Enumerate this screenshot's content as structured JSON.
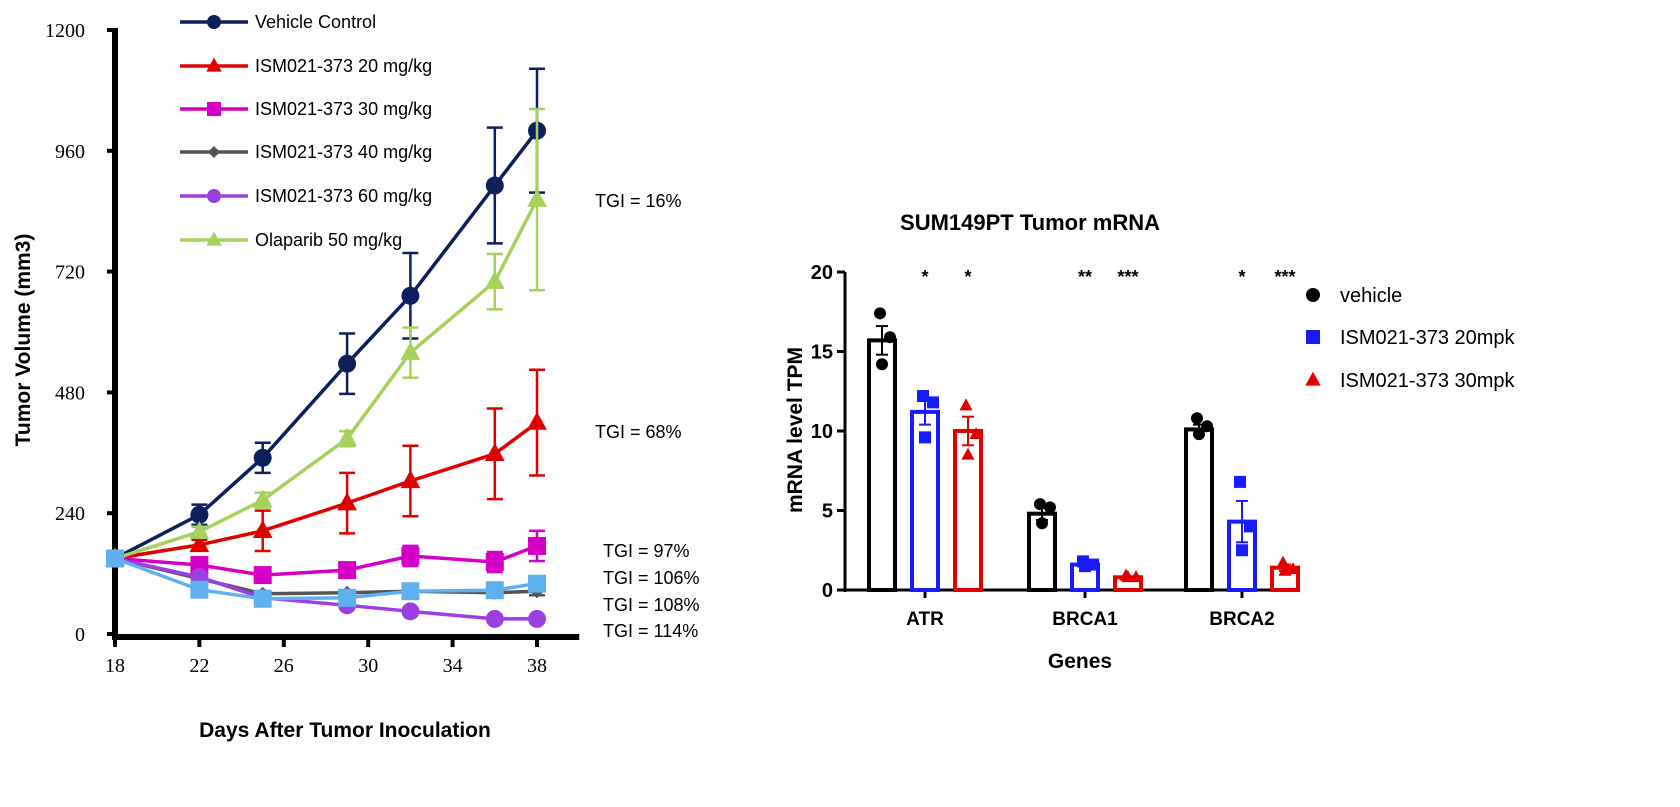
{
  "chart_data": [
    {
      "type": "line",
      "title": "",
      "xlabel": "Days After Tumor Inoculation",
      "ylabel": "Tumor Volume (mm3)",
      "xlim": [
        18,
        40
      ],
      "ylim": [
        0,
        1200
      ],
      "xticks": [
        "18",
        "22",
        "26",
        "30",
        "34",
        "38"
      ],
      "yticks": [
        "0",
        "240",
        "480",
        "720",
        "960",
        "1200"
      ],
      "legend_placement": "top-left",
      "grid": false,
      "x": [
        18,
        22,
        25,
        29,
        32,
        36,
        38
      ],
      "series": [
        {
          "name": "Vehicle Control",
          "color": "#0d1f5c",
          "marker": "circle",
          "values": [
            150,
            237,
            350,
            537,
            672,
            891,
            1000
          ],
          "errors": [
            10,
            20,
            30,
            60,
            85,
            115,
            123
          ]
        },
        {
          "name": "ISM021-373 20 mg/kg",
          "color": "#e00000",
          "marker": "triangle",
          "values": [
            150,
            177,
            205,
            260,
            304,
            358,
            420
          ],
          "errors": [
            5,
            10,
            40,
            60,
            70,
            90,
            105
          ]
        },
        {
          "name": "ISM021-373 30 mg/kg",
          "color": "#d400c8",
          "marker": "square",
          "values": [
            150,
            137,
            117,
            127,
            155,
            143,
            175
          ],
          "errors": [
            5,
            5,
            5,
            8,
            20,
            20,
            30
          ]
        },
        {
          "name": "ISM021-373 40 mg/kg",
          "color": "#555555",
          "marker": "diamond",
          "values": [
            150,
            110,
            80,
            82,
            85,
            82,
            85
          ],
          "errors": [
            5,
            5,
            5,
            5,
            8,
            8,
            8
          ]
        },
        {
          "name": "ISM021-373 60 mg/kg",
          "color": "#9b3fe0",
          "marker": "circle",
          "values": [
            150,
            113,
            72,
            57,
            45,
            30,
            30
          ],
          "errors": [
            5,
            5,
            5,
            5,
            5,
            5,
            5
          ]
        },
        {
          "name": "Olaparib 50 mg/kg",
          "color": "#a6d15a",
          "marker": "triangle",
          "values": [
            150,
            203,
            266,
            388,
            559,
            700,
            863
          ],
          "errors": [
            5,
            10,
            15,
            15,
            50,
            55,
            180
          ]
        },
        {
          "name": "",
          "color": "#5eb0ef",
          "marker": "square",
          "values": [
            150,
            88,
            70,
            72,
            85,
            87,
            100
          ],
          "errors": [
            5,
            5,
            5,
            5,
            5,
            5,
            5
          ]
        }
      ],
      "annotations": [
        "TGI = 16%",
        "TGI = 68%",
        "TGI = 97%",
        "TGI = 106%",
        "TGI = 108%",
        "TGI = 114%"
      ]
    },
    {
      "type": "bar",
      "title": "SUM149PT Tumor mRNA",
      "xlabel": "Genes",
      "ylabel": "mRNA level TPM",
      "ylim": [
        0,
        20
      ],
      "yticks": [
        "0",
        "5",
        "10",
        "15",
        "20"
      ],
      "categories": [
        "ATR",
        "BRCA1",
        "BRCA2"
      ],
      "legend_placement": "right",
      "grid": false,
      "series": [
        {
          "name": "vehicle",
          "color": "#000000",
          "marker": "circle",
          "values": [
            15.7,
            4.8,
            10.1
          ],
          "sem": [
            0.9,
            0.4,
            0.3
          ],
          "points": [
            [
              17.4,
              15.9,
              14.2
            ],
            [
              5.4,
              5.2,
              4.2
            ],
            [
              10.8,
              10.3,
              9.8
            ]
          ]
        },
        {
          "name": "ISM021-373 20mpk",
          "color": "#1a1aff",
          "marker": "square",
          "values": [
            11.2,
            1.6,
            4.3
          ],
          "sem": [
            0.8,
            0.1,
            1.3
          ],
          "points": [
            [
              12.2,
              11.8,
              9.6
            ],
            [
              1.8,
              1.6,
              1.5
            ],
            [
              6.8,
              4.0,
              2.5
            ]
          ]
        },
        {
          "name": "ISM021-373 30mpk",
          "color": "#e00000",
          "marker": "triangle",
          "values": [
            10.0,
            0.8,
            1.4
          ],
          "sem": [
            0.9,
            0.05,
            0.2
          ],
          "points": [
            [
              11.6,
              9.8,
              8.5
            ],
            [
              0.9,
              0.8,
              0.8
            ],
            [
              1.7,
              1.3,
              1.2
            ]
          ]
        }
      ],
      "significance": [
        [
          "",
          "*",
          "*"
        ],
        [
          "",
          "**",
          "***"
        ],
        [
          "",
          "*",
          "***"
        ]
      ]
    }
  ]
}
